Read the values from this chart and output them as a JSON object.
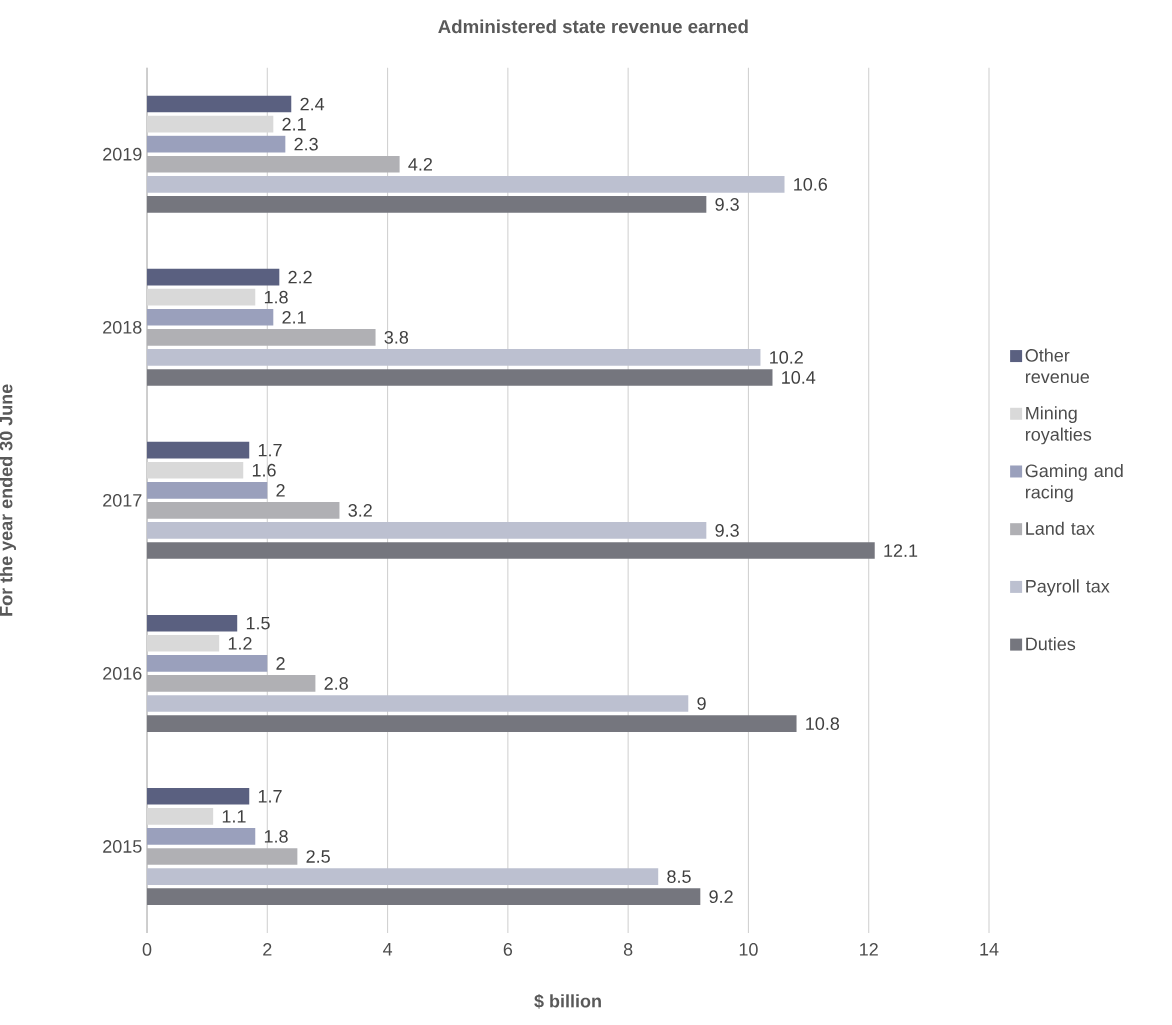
{
  "chart_data": {
    "type": "bar",
    "orientation": "horizontal",
    "title": "Administered state revenue earned",
    "xlabel": "$ billion",
    "ylabel": "For the year ended 30 June",
    "categories": [
      "2019",
      "2018",
      "2017",
      "2016",
      "2015"
    ],
    "series": [
      {
        "name": "Other revenue",
        "color": "#5a6080",
        "values": [
          2.4,
          2.2,
          1.7,
          1.5,
          1.7
        ]
      },
      {
        "name": "Mining royalties",
        "color": "#d9d9d9",
        "values": [
          2.1,
          1.8,
          1.6,
          1.2,
          1.1
        ]
      },
      {
        "name": "Gaming and racing",
        "color": "#9aa0bc",
        "values": [
          2.3,
          2.1,
          2,
          2,
          1.8
        ]
      },
      {
        "name": "Land tax",
        "color": "#b0b0b4",
        "values": [
          4.2,
          3.8,
          3.2,
          2.8,
          2.5
        ]
      },
      {
        "name": "Payroll tax",
        "color": "#bcc0d0",
        "values": [
          10.6,
          10.2,
          9.3,
          9,
          8.5
        ]
      },
      {
        "name": "Duties",
        "color": "#75767e",
        "values": [
          9.3,
          10.4,
          12.1,
          10.8,
          9.2
        ]
      }
    ],
    "xlim": [
      0,
      14
    ],
    "xticks": [
      0,
      2,
      4,
      6,
      8,
      10,
      12,
      14
    ],
    "grid": "x",
    "legend": "right",
    "data_labels": true
  }
}
